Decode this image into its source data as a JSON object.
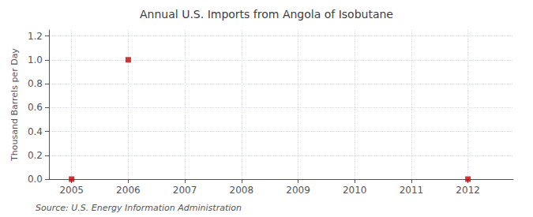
{
  "chart_data": {
    "type": "scatter",
    "title": "Annual U.S. Imports from Angola of Isobutane",
    "ylabel": "Thousand Barrels per Day",
    "annotations": [
      "Source: U.S. Energy Information Administration"
    ],
    "x": [
      2005,
      2006,
      2012
    ],
    "values": [
      0.0,
      1.0,
      0.0
    ],
    "color": "#cc0000",
    "marker": "square",
    "xlim": [
      2004.6,
      2012.8
    ],
    "xticks": [
      2005,
      2006,
      2007,
      2008,
      2009,
      2010,
      2011,
      2012
    ],
    "ylim": [
      0.0,
      1.25
    ],
    "yticks": [
      {
        "value": 0.0,
        "label": "0.0"
      },
      0.2,
      0.4,
      0.6,
      0.8,
      {
        "value": 1.0,
        "label": "1.0"
      },
      1.2
    ],
    "grid": true
  }
}
